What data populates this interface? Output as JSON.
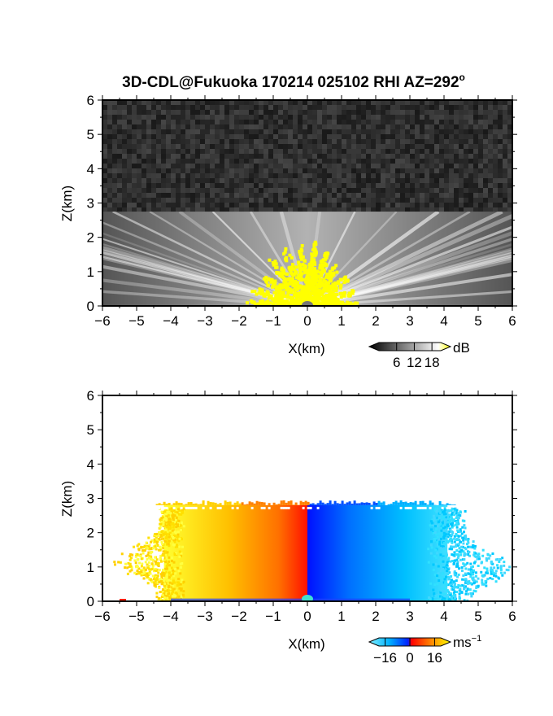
{
  "figure": {
    "title": "3D-CDL@Fukuoka 170214 025102 RHI AZ=292",
    "title_superscript": "o"
  },
  "chart_data": [
    {
      "type": "heatmap",
      "quantity": "backscatter intensity",
      "xlabel": "X(km)",
      "ylabel": "Z(km)",
      "xlim": [
        -6,
        6
      ],
      "ylim": [
        0,
        6
      ],
      "xticks": [
        -6,
        -5,
        -4,
        -3,
        -2,
        -1,
        0,
        1,
        2,
        3,
        4,
        5,
        6
      ],
      "yticks": [
        0,
        1,
        2,
        3,
        4,
        5,
        6
      ],
      "signal_top_km": 2.75,
      "saturated_region": {
        "x_range": [
          -1.8,
          1.5
        ],
        "z_top_km": 1.9,
        "color": "#ffff00"
      },
      "colorbar": {
        "unit": "dB",
        "ticks": [
          6,
          12,
          18
        ],
        "range": [
          0,
          21
        ],
        "colors": [
          "#000000",
          "#ffffff",
          "#ffff00"
        ]
      }
    },
    {
      "type": "heatmap",
      "quantity": "radial velocity",
      "xlabel": "X(km)",
      "ylabel": "Z(km)",
      "xlim": [
        -6,
        6
      ],
      "ylim": [
        0,
        6
      ],
      "xticks": [
        -6,
        -5,
        -4,
        -3,
        -2,
        -1,
        0,
        1,
        2,
        3,
        4,
        5,
        6
      ],
      "yticks": [
        0,
        1,
        2,
        3,
        4,
        5,
        6
      ],
      "signal_top_km": 2.8,
      "left_side_range_km": [
        -5.5,
        0
      ],
      "right_side_range_km": [
        0,
        5.7
      ],
      "colorbar": {
        "unit": "ms",
        "unit_exponent": "−1",
        "ticks": [
          "−16",
          "0",
          "16"
        ],
        "tick_values": [
          -16,
          0,
          16
        ],
        "range": [
          -20,
          20
        ],
        "colors": [
          "#7ff0ff",
          "#00c0ff",
          "#0020ff",
          "#ff0000",
          "#ff8000",
          "#ffff00"
        ]
      }
    }
  ]
}
